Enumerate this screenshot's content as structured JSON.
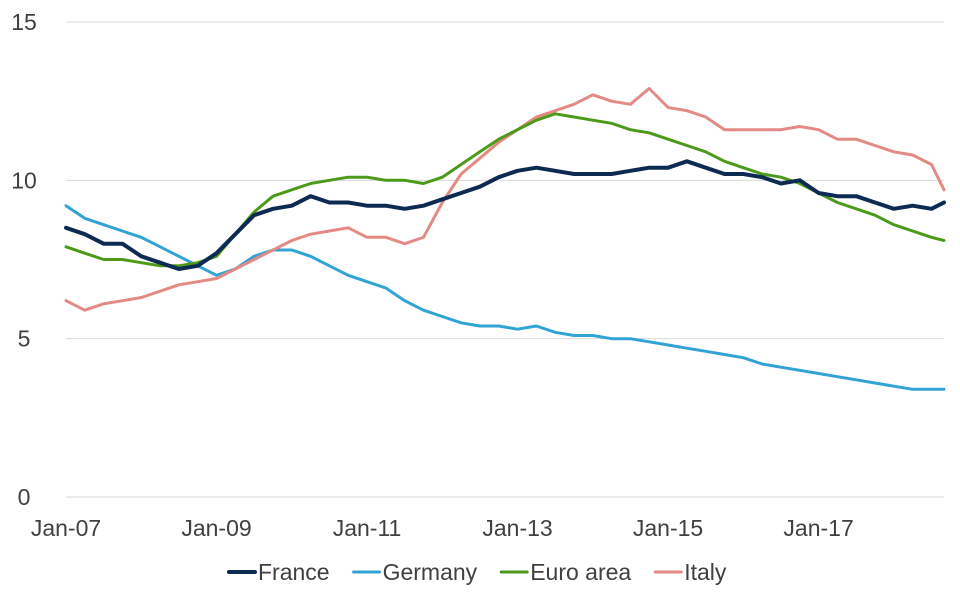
{
  "chart_data": {
    "type": "line",
    "title": "",
    "xlabel": "",
    "ylabel": "",
    "ylim": [
      0,
      15
    ],
    "yticks": [
      0,
      5,
      10,
      15
    ],
    "grid": true,
    "legend_position": "bottom",
    "x_start": "Jan-07",
    "x_end": "Sep-18",
    "xtick_labels": [
      "Jan-07",
      "Jan-09",
      "Jan-11",
      "Jan-13",
      "Jan-15",
      "Jan-17"
    ],
    "series": [
      {
        "name": "France",
        "color": "#0d2a53",
        "points": [
          [
            "Jan-07",
            8.5
          ],
          [
            "Apr-07",
            8.3
          ],
          [
            "Jul-07",
            8.0
          ],
          [
            "Oct-07",
            8.0
          ],
          [
            "Jan-08",
            7.6
          ],
          [
            "Apr-08",
            7.4
          ],
          [
            "Jul-08",
            7.2
          ],
          [
            "Oct-08",
            7.3
          ],
          [
            "Jan-09",
            7.7
          ],
          [
            "Apr-09",
            8.3
          ],
          [
            "Jul-09",
            8.9
          ],
          [
            "Oct-09",
            9.1
          ],
          [
            "Jan-10",
            9.2
          ],
          [
            "Apr-10",
            9.5
          ],
          [
            "Jul-10",
            9.3
          ],
          [
            "Oct-10",
            9.3
          ],
          [
            "Jan-11",
            9.2
          ],
          [
            "Apr-11",
            9.2
          ],
          [
            "Jul-11",
            9.1
          ],
          [
            "Oct-11",
            9.2
          ],
          [
            "Jan-12",
            9.4
          ],
          [
            "Apr-12",
            9.6
          ],
          [
            "Jul-12",
            9.8
          ],
          [
            "Oct-12",
            10.1
          ],
          [
            "Jan-13",
            10.3
          ],
          [
            "Apr-13",
            10.4
          ],
          [
            "Jul-13",
            10.3
          ],
          [
            "Oct-13",
            10.2
          ],
          [
            "Jan-14",
            10.2
          ],
          [
            "Apr-14",
            10.2
          ],
          [
            "Jul-14",
            10.3
          ],
          [
            "Oct-14",
            10.4
          ],
          [
            "Jan-15",
            10.4
          ],
          [
            "Apr-15",
            10.6
          ],
          [
            "Jul-15",
            10.4
          ],
          [
            "Oct-15",
            10.2
          ],
          [
            "Jan-16",
            10.2
          ],
          [
            "Apr-16",
            10.1
          ],
          [
            "Jul-16",
            9.9
          ],
          [
            "Oct-16",
            10.0
          ],
          [
            "Jan-17",
            9.6
          ],
          [
            "Apr-17",
            9.5
          ],
          [
            "Jul-17",
            9.5
          ],
          [
            "Oct-17",
            9.3
          ],
          [
            "Jan-18",
            9.1
          ],
          [
            "Apr-18",
            9.2
          ],
          [
            "Jul-18",
            9.1
          ],
          [
            "Sep-18",
            9.3
          ]
        ]
      },
      {
        "name": "Germany",
        "color": "#31a3d4",
        "points": [
          [
            "Jan-07",
            9.2
          ],
          [
            "Apr-07",
            8.8
          ],
          [
            "Jul-07",
            8.6
          ],
          [
            "Oct-07",
            8.4
          ],
          [
            "Jan-08",
            8.2
          ],
          [
            "Apr-08",
            7.9
          ],
          [
            "Jul-08",
            7.6
          ],
          [
            "Oct-08",
            7.3
          ],
          [
            "Jan-09",
            7.0
          ],
          [
            "Apr-09",
            7.2
          ],
          [
            "Jul-09",
            7.6
          ],
          [
            "Oct-09",
            7.8
          ],
          [
            "Jan-10",
            7.8
          ],
          [
            "Apr-10",
            7.6
          ],
          [
            "Jul-10",
            7.3
          ],
          [
            "Oct-10",
            7.0
          ],
          [
            "Jan-11",
            6.8
          ],
          [
            "Apr-11",
            6.6
          ],
          [
            "Jul-11",
            6.2
          ],
          [
            "Oct-11",
            5.9
          ],
          [
            "Jan-12",
            5.7
          ],
          [
            "Apr-12",
            5.5
          ],
          [
            "Jul-12",
            5.4
          ],
          [
            "Oct-12",
            5.4
          ],
          [
            "Jan-13",
            5.3
          ],
          [
            "Apr-13",
            5.4
          ],
          [
            "Jul-13",
            5.2
          ],
          [
            "Oct-13",
            5.1
          ],
          [
            "Jan-14",
            5.1
          ],
          [
            "Apr-14",
            5.0
          ],
          [
            "Jul-14",
            5.0
          ],
          [
            "Oct-14",
            4.9
          ],
          [
            "Jan-15",
            4.8
          ],
          [
            "Apr-15",
            4.7
          ],
          [
            "Jul-15",
            4.6
          ],
          [
            "Oct-15",
            4.5
          ],
          [
            "Jan-16",
            4.4
          ],
          [
            "Apr-16",
            4.2
          ],
          [
            "Jul-16",
            4.1
          ],
          [
            "Oct-16",
            4.0
          ],
          [
            "Jan-17",
            3.9
          ],
          [
            "Apr-17",
            3.8
          ],
          [
            "Jul-17",
            3.7
          ],
          [
            "Oct-17",
            3.6
          ],
          [
            "Jan-18",
            3.5
          ],
          [
            "Apr-18",
            3.4
          ],
          [
            "Sep-18",
            3.4
          ]
        ]
      },
      {
        "name": "Euro area",
        "color": "#4c9a1a",
        "points": [
          [
            "Jan-07",
            7.9
          ],
          [
            "Apr-07",
            7.7
          ],
          [
            "Jul-07",
            7.5
          ],
          [
            "Oct-07",
            7.5
          ],
          [
            "Jan-08",
            7.4
          ],
          [
            "Apr-08",
            7.3
          ],
          [
            "Jul-08",
            7.3
          ],
          [
            "Oct-08",
            7.4
          ],
          [
            "Jan-09",
            7.6
          ],
          [
            "Apr-09",
            8.3
          ],
          [
            "Jul-09",
            9.0
          ],
          [
            "Oct-09",
            9.5
          ],
          [
            "Jan-10",
            9.7
          ],
          [
            "Apr-10",
            9.9
          ],
          [
            "Jul-10",
            10.0
          ],
          [
            "Oct-10",
            10.1
          ],
          [
            "Jan-11",
            10.1
          ],
          [
            "Apr-11",
            10.0
          ],
          [
            "Jul-11",
            10.0
          ],
          [
            "Oct-11",
            9.9
          ],
          [
            "Jan-12",
            10.1
          ],
          [
            "Apr-12",
            10.5
          ],
          [
            "Jul-12",
            10.9
          ],
          [
            "Oct-12",
            11.3
          ],
          [
            "Jan-13",
            11.6
          ],
          [
            "Apr-13",
            11.9
          ],
          [
            "Jul-13",
            12.1
          ],
          [
            "Oct-13",
            12.0
          ],
          [
            "Jan-14",
            11.9
          ],
          [
            "Apr-14",
            11.8
          ],
          [
            "Jul-14",
            11.6
          ],
          [
            "Oct-14",
            11.5
          ],
          [
            "Jan-15",
            11.3
          ],
          [
            "Apr-15",
            11.1
          ],
          [
            "Jul-15",
            10.9
          ],
          [
            "Oct-15",
            10.6
          ],
          [
            "Jan-16",
            10.4
          ],
          [
            "Apr-16",
            10.2
          ],
          [
            "Jul-16",
            10.1
          ],
          [
            "Oct-16",
            9.9
          ],
          [
            "Jan-17",
            9.6
          ],
          [
            "Apr-17",
            9.3
          ],
          [
            "Jul-17",
            9.1
          ],
          [
            "Oct-17",
            8.9
          ],
          [
            "Jan-18",
            8.6
          ],
          [
            "Apr-18",
            8.4
          ],
          [
            "Jul-18",
            8.2
          ],
          [
            "Sep-18",
            8.1
          ]
        ]
      },
      {
        "name": "Italy",
        "color": "#e48a85",
        "points": [
          [
            "Jan-07",
            6.2
          ],
          [
            "Apr-07",
            5.9
          ],
          [
            "Jul-07",
            6.1
          ],
          [
            "Oct-07",
            6.2
          ],
          [
            "Jan-08",
            6.3
          ],
          [
            "Apr-08",
            6.5
          ],
          [
            "Jul-08",
            6.7
          ],
          [
            "Oct-08",
            6.8
          ],
          [
            "Jan-09",
            6.9
          ],
          [
            "Apr-09",
            7.2
          ],
          [
            "Jul-09",
            7.5
          ],
          [
            "Oct-09",
            7.8
          ],
          [
            "Jan-10",
            8.1
          ],
          [
            "Apr-10",
            8.3
          ],
          [
            "Jul-10",
            8.4
          ],
          [
            "Oct-10",
            8.5
          ],
          [
            "Jan-11",
            8.2
          ],
          [
            "Apr-11",
            8.2
          ],
          [
            "Jul-11",
            8.0
          ],
          [
            "Oct-11",
            8.2
          ],
          [
            "Jan-12",
            9.3
          ],
          [
            "Apr-12",
            10.2
          ],
          [
            "Jul-12",
            10.7
          ],
          [
            "Oct-12",
            11.2
          ],
          [
            "Jan-13",
            11.6
          ],
          [
            "Apr-13",
            12.0
          ],
          [
            "Jul-13",
            12.2
          ],
          [
            "Oct-13",
            12.4
          ],
          [
            "Jan-14",
            12.7
          ],
          [
            "Apr-14",
            12.5
          ],
          [
            "Jul-14",
            12.4
          ],
          [
            "Oct-14",
            12.9
          ],
          [
            "Jan-15",
            12.3
          ],
          [
            "Apr-15",
            12.2
          ],
          [
            "Jul-15",
            12.0
          ],
          [
            "Oct-15",
            11.6
          ],
          [
            "Jan-16",
            11.6
          ],
          [
            "Apr-16",
            11.6
          ],
          [
            "Jul-16",
            11.6
          ],
          [
            "Oct-16",
            11.7
          ],
          [
            "Jan-17",
            11.6
          ],
          [
            "Apr-17",
            11.3
          ],
          [
            "Jul-17",
            11.3
          ],
          [
            "Oct-17",
            11.1
          ],
          [
            "Jan-18",
            10.9
          ],
          [
            "Apr-18",
            10.8
          ],
          [
            "Jul-18",
            10.5
          ],
          [
            "Sep-18",
            9.7
          ]
        ]
      }
    ]
  }
}
